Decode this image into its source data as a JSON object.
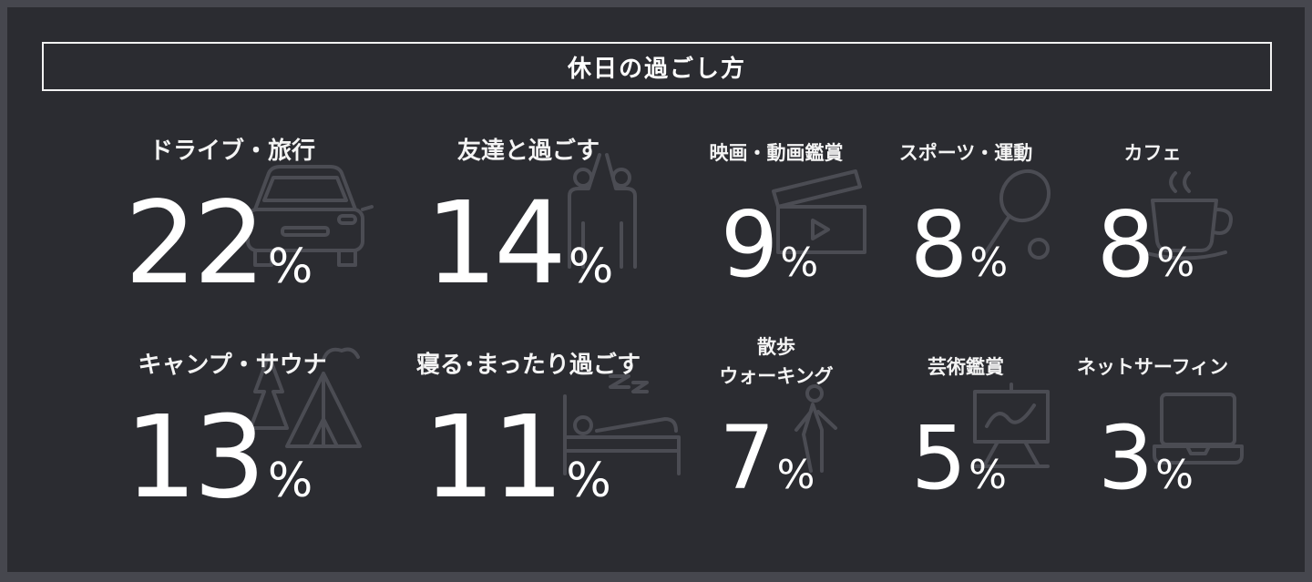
{
  "title": "休日の過ごし方",
  "items": [
    {
      "label": "ドライブ・旅行",
      "value": "22",
      "unit": "%",
      "icon": "car-icon"
    },
    {
      "label": "友達と過ごす",
      "value": "14",
      "unit": "%",
      "icon": "friends-high-five-icon"
    },
    {
      "label": "映画・動画鑑賞",
      "value": "9",
      "unit": "%",
      "icon": "clapperboard-icon"
    },
    {
      "label": "スポーツ・運動",
      "value": "8",
      "unit": "%",
      "icon": "tennis-racket-icon"
    },
    {
      "label": "カフェ",
      "value": "8",
      "unit": "%",
      "icon": "coffee-cup-icon"
    },
    {
      "label": "キャンプ・サウナ",
      "value": "13",
      "unit": "%",
      "icon": "tent-icon"
    },
    {
      "label": "寝る･まったり過ごす",
      "value": "11",
      "unit": "%",
      "icon": "bed-sleep-icon"
    },
    {
      "label": "散歩\nウォーキング",
      "value": "7",
      "unit": "%",
      "icon": "walking-person-icon"
    },
    {
      "label": "芸術鑑賞",
      "value": "5",
      "unit": "%",
      "icon": "easel-icon"
    },
    {
      "label": "ネットサーフィン",
      "value": "3",
      "unit": "%",
      "icon": "laptop-icon"
    }
  ]
}
